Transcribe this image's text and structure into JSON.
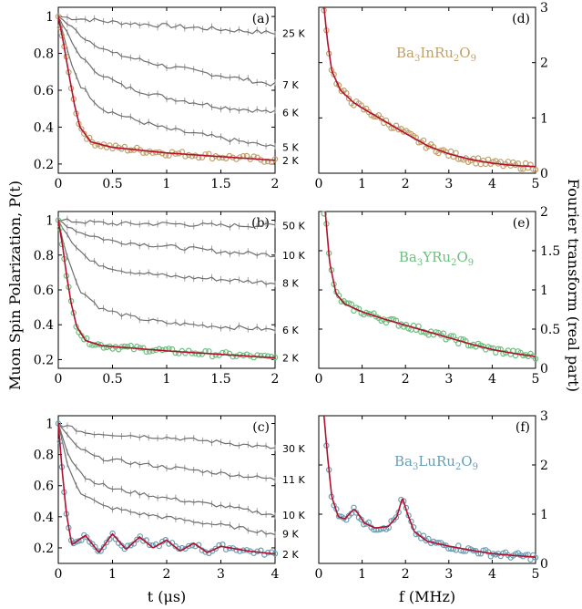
{
  "figure": {
    "ylabel_left": "Muon Spin Polarization, P(t)",
    "ylabel_right": "Fourier transform (real part)",
    "xlabel_left": "t (μs)",
    "xlabel_right": "f (MHz)"
  },
  "chart_data": [
    {
      "panel": "(a)",
      "type": "line",
      "xlim": [
        0,
        2
      ],
      "ylim": [
        0.15,
        1.05
      ],
      "xticks": [
        0,
        0.5,
        1,
        1.5,
        2
      ],
      "yticks": [
        0.2,
        0.4,
        0.6,
        0.8,
        1
      ],
      "marker_color": "#c0a06a",
      "series": [
        {
          "name": "25 K",
          "points": [
            [
              0,
              1
            ],
            [
              0.5,
              0.97
            ],
            [
              1,
              0.95
            ],
            [
              1.5,
              0.93
            ],
            [
              2,
              0.91
            ]
          ]
        },
        {
          "name": "7 K",
          "points": [
            [
              0,
              1
            ],
            [
              0.25,
              0.88
            ],
            [
              0.5,
              0.8
            ],
            [
              1,
              0.73
            ],
            [
              1.5,
              0.68
            ],
            [
              2,
              0.63
            ]
          ]
        },
        {
          "name": "6 K",
          "points": [
            [
              0,
              1
            ],
            [
              0.15,
              0.83
            ],
            [
              0.3,
              0.72
            ],
            [
              0.6,
              0.62
            ],
            [
              1,
              0.56
            ],
            [
              1.5,
              0.51
            ],
            [
              2,
              0.48
            ]
          ]
        },
        {
          "name": "5 K",
          "points": [
            [
              0,
              1
            ],
            [
              0.1,
              0.78
            ],
            [
              0.2,
              0.63
            ],
            [
              0.4,
              0.5
            ],
            [
              0.7,
              0.44
            ],
            [
              1,
              0.39
            ],
            [
              1.5,
              0.34
            ],
            [
              2,
              0.29
            ]
          ]
        },
        {
          "name": "2 K",
          "points": [
            [
              0,
              1
            ],
            [
              0.05,
              0.85
            ],
            [
              0.1,
              0.68
            ],
            [
              0.15,
              0.52
            ],
            [
              0.2,
              0.4
            ],
            [
              0.3,
              0.32
            ],
            [
              0.5,
              0.29
            ],
            [
              1,
              0.26
            ],
            [
              1.5,
              0.24
            ],
            [
              2,
              0.22
            ]
          ]
        }
      ]
    },
    {
      "panel": "(b)",
      "type": "line",
      "xlim": [
        0,
        2
      ],
      "ylim": [
        0.15,
        1.05
      ],
      "xticks": [
        0,
        0.5,
        1,
        1.5,
        2
      ],
      "yticks": [
        0.2,
        0.4,
        0.6,
        0.8,
        1
      ],
      "marker_color": "#6cbf7e",
      "series": [
        {
          "name": "50 K",
          "points": [
            [
              0,
              1
            ],
            [
              0.5,
              0.98
            ],
            [
              1,
              0.98
            ],
            [
              1.5,
              0.97
            ],
            [
              2,
              0.97
            ]
          ]
        },
        {
          "name": "10 K",
          "points": [
            [
              0,
              1
            ],
            [
              0.2,
              0.93
            ],
            [
              0.5,
              0.88
            ],
            [
              1,
              0.85
            ],
            [
              1.5,
              0.82
            ],
            [
              2,
              0.8
            ]
          ]
        },
        {
          "name": "8 K",
          "points": [
            [
              0,
              1
            ],
            [
              0.15,
              0.86
            ],
            [
              0.3,
              0.76
            ],
            [
              0.6,
              0.71
            ],
            [
              1,
              0.68
            ],
            [
              1.5,
              0.66
            ],
            [
              2,
              0.64
            ]
          ]
        },
        {
          "name": "6 K",
          "points": [
            [
              0,
              1
            ],
            [
              0.1,
              0.75
            ],
            [
              0.2,
              0.6
            ],
            [
              0.4,
              0.49
            ],
            [
              0.7,
              0.44
            ],
            [
              1,
              0.41
            ],
            [
              1.5,
              0.39
            ],
            [
              2,
              0.37
            ]
          ]
        },
        {
          "name": "2 K",
          "points": [
            [
              0,
              1
            ],
            [
              0.04,
              0.85
            ],
            [
              0.08,
              0.67
            ],
            [
              0.12,
              0.52
            ],
            [
              0.17,
              0.39
            ],
            [
              0.25,
              0.31
            ],
            [
              0.4,
              0.28
            ],
            [
              1,
              0.25
            ],
            [
              1.5,
              0.23
            ],
            [
              2,
              0.21
            ]
          ]
        }
      ]
    },
    {
      "panel": "(c)",
      "type": "line",
      "xlim": [
        0,
        4
      ],
      "ylim": [
        0.1,
        1.05
      ],
      "xticks": [
        0,
        1,
        2,
        3,
        4
      ],
      "yticks": [
        0.2,
        0.4,
        0.6,
        0.8,
        1
      ],
      "marker_color": "#6a9db4",
      "series": [
        {
          "name": "30 K",
          "points": [
            [
              0,
              1
            ],
            [
              0.5,
              0.94
            ],
            [
              1,
              0.93
            ],
            [
              2,
              0.91
            ],
            [
              3,
              0.88
            ],
            [
              4,
              0.84
            ]
          ]
        },
        {
          "name": "11 K",
          "points": [
            [
              0,
              1
            ],
            [
              0.3,
              0.86
            ],
            [
              0.7,
              0.78
            ],
            [
              1.5,
              0.74
            ],
            [
              2.5,
              0.7
            ],
            [
              3.5,
              0.66
            ],
            [
              4,
              0.64
            ]
          ]
        },
        {
          "name": "10 K",
          "points": [
            [
              0,
              1
            ],
            [
              0.2,
              0.79
            ],
            [
              0.5,
              0.65
            ],
            [
              1,
              0.58
            ],
            [
              2,
              0.52
            ],
            [
              3,
              0.47
            ],
            [
              4,
              0.41
            ]
          ]
        },
        {
          "name": "9 K",
          "points": [
            [
              0,
              1
            ],
            [
              0.15,
              0.75
            ],
            [
              0.4,
              0.56
            ],
            [
              0.8,
              0.47
            ],
            [
              1.5,
              0.42
            ],
            [
              2.5,
              0.37
            ],
            [
              3.5,
              0.32
            ],
            [
              4,
              0.29
            ]
          ]
        },
        {
          "name": "2 K",
          "points": [
            [
              0,
              1
            ],
            [
              0.07,
              0.7
            ],
            [
              0.15,
              0.42
            ],
            [
              0.25,
              0.22
            ],
            [
              0.5,
              0.28
            ],
            [
              0.75,
              0.17
            ],
            [
              1,
              0.29
            ],
            [
              1.25,
              0.19
            ],
            [
              1.5,
              0.27
            ],
            [
              1.75,
              0.2
            ],
            [
              2,
              0.25
            ],
            [
              2.25,
              0.18
            ],
            [
              2.5,
              0.23
            ],
            [
              2.75,
              0.17
            ],
            [
              3,
              0.21
            ],
            [
              3.5,
              0.18
            ],
            [
              4,
              0.16
            ]
          ]
        }
      ]
    },
    {
      "panel": "(d)",
      "type": "line",
      "compound": "Ba3InRu2O9",
      "xlim": [
        0,
        5
      ],
      "ylim": [
        0,
        3
      ],
      "xticks": [
        0,
        1,
        2,
        3,
        4,
        5
      ],
      "yticks": [
        0,
        1,
        2,
        3
      ],
      "marker_color": "#c0a06a",
      "series": [
        {
          "name": "fit",
          "points": [
            [
              0.12,
              3
            ],
            [
              0.2,
              2.4
            ],
            [
              0.3,
              1.85
            ],
            [
              0.5,
              1.5
            ],
            [
              0.8,
              1.28
            ],
            [
              1,
              1.18
            ],
            [
              1.5,
              0.95
            ],
            [
              2,
              0.72
            ],
            [
              2.5,
              0.5
            ],
            [
              3,
              0.35
            ],
            [
              3.5,
              0.25
            ],
            [
              4,
              0.18
            ],
            [
              4.5,
              0.14
            ],
            [
              5,
              0.12
            ]
          ]
        }
      ]
    },
    {
      "panel": "(e)",
      "type": "line",
      "compound": "Ba3YRu2O9",
      "xlim": [
        0,
        5
      ],
      "ylim": [
        0,
        2
      ],
      "xticks": [
        0,
        1,
        2,
        3,
        4,
        5
      ],
      "yticks": [
        0,
        0.5,
        1,
        1.5,
        2
      ],
      "marker_color": "#6cbf7e",
      "series": [
        {
          "name": "fit",
          "points": [
            [
              0.15,
              2
            ],
            [
              0.25,
              1.35
            ],
            [
              0.4,
              0.95
            ],
            [
              0.6,
              0.82
            ],
            [
              1,
              0.72
            ],
            [
              1.5,
              0.63
            ],
            [
              2,
              0.55
            ],
            [
              2.5,
              0.47
            ],
            [
              3,
              0.39
            ],
            [
              3.5,
              0.31
            ],
            [
              4,
              0.24
            ],
            [
              4.5,
              0.19
            ],
            [
              5,
              0.15
            ]
          ]
        }
      ]
    },
    {
      "panel": "(f)",
      "type": "line",
      "compound": "Ba3LuRu2O9",
      "xlim": [
        0,
        5
      ],
      "ylim": [
        0,
        3
      ],
      "xticks": [
        0,
        1,
        2,
        3,
        4,
        5
      ],
      "yticks": [
        0,
        1,
        2,
        3
      ],
      "marker_color": "#6a9db4",
      "series": [
        {
          "name": "fit",
          "points": [
            [
              0.12,
              3
            ],
            [
              0.2,
              2.2
            ],
            [
              0.3,
              1.35
            ],
            [
              0.45,
              0.95
            ],
            [
              0.6,
              0.9
            ],
            [
              0.75,
              1.05
            ],
            [
              0.82,
              1.1
            ],
            [
              0.9,
              1.02
            ],
            [
              1.05,
              0.82
            ],
            [
              1.3,
              0.72
            ],
            [
              1.6,
              0.75
            ],
            [
              1.8,
              0.95
            ],
            [
              1.93,
              1.33
            ],
            [
              2.05,
              1.0
            ],
            [
              2.2,
              0.65
            ],
            [
              2.5,
              0.45
            ],
            [
              3,
              0.35
            ],
            [
              3.5,
              0.27
            ],
            [
              4,
              0.2
            ],
            [
              4.5,
              0.16
            ],
            [
              5,
              0.13
            ]
          ]
        }
      ]
    }
  ]
}
